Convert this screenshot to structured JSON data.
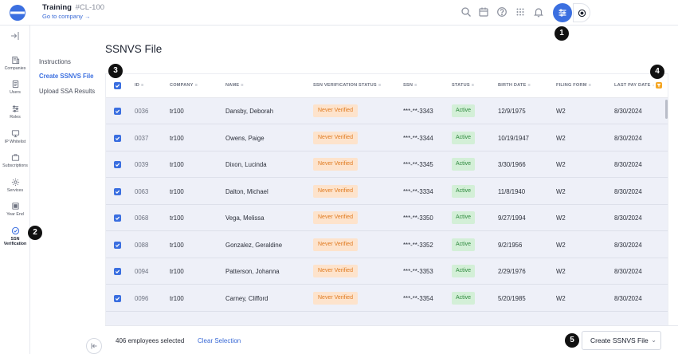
{
  "header": {
    "company_name": "Training",
    "company_code": "#CL-100",
    "goto_link": "Go to company →"
  },
  "icons": {
    "brand": "logo-icon",
    "accent": "#3b6fe0"
  },
  "rail": {
    "items": [
      {
        "label": "Companies"
      },
      {
        "label": "Users"
      },
      {
        "label": "Roles"
      },
      {
        "label": "IP Whitelist"
      },
      {
        "label": "Subscriptions"
      },
      {
        "label": "Services"
      },
      {
        "label": "Year End"
      },
      {
        "label": "SSN Verification",
        "line1": "SSN",
        "line2": "Verification"
      }
    ]
  },
  "subnav": {
    "items": [
      {
        "label": "Instructions"
      },
      {
        "label": "Create SSNVS File"
      },
      {
        "label": "Upload SSA Results"
      }
    ]
  },
  "page": {
    "title": "SSNVS File"
  },
  "table": {
    "columns": {
      "id": "ID",
      "company": "COMPANY",
      "name": "NAME",
      "ssn_status": "SSN VERIFICATION STATUS",
      "ssn": "SSN",
      "status": "STATUS",
      "birth": "BIRTH DATE",
      "filing": "FILING FORM",
      "last_pay": "LAST PAY DATE"
    },
    "rows": [
      {
        "id": "0036",
        "company": "tr100",
        "name": "Dansby, Deborah",
        "ssn_status": "Never Verified",
        "ssn": "***-**-3343",
        "status": "Active",
        "birth": "12/9/1975",
        "filing": "W2",
        "last_pay": "8/30/2024"
      },
      {
        "id": "0037",
        "company": "tr100",
        "name": "Owens, Paige",
        "ssn_status": "Never Verified",
        "ssn": "***-**-3344",
        "status": "Active",
        "birth": "10/19/1947",
        "filing": "W2",
        "last_pay": "8/30/2024"
      },
      {
        "id": "0039",
        "company": "tr100",
        "name": "Dixon, Lucinda",
        "ssn_status": "Never Verified",
        "ssn": "***-**-3345",
        "status": "Active",
        "birth": "3/30/1966",
        "filing": "W2",
        "last_pay": "8/30/2024"
      },
      {
        "id": "0063",
        "company": "tr100",
        "name": "Dalton, Michael",
        "ssn_status": "Never Verified",
        "ssn": "***-**-3334",
        "status": "Active",
        "birth": "11/8/1940",
        "filing": "W2",
        "last_pay": "8/30/2024"
      },
      {
        "id": "0068",
        "company": "tr100",
        "name": "Vega, Melissa",
        "ssn_status": "Never Verified",
        "ssn": "***-**-3350",
        "status": "Active",
        "birth": "9/27/1994",
        "filing": "W2",
        "last_pay": "8/30/2024"
      },
      {
        "id": "0088",
        "company": "tr100",
        "name": "Gonzalez, Geraldine",
        "ssn_status": "Never Verified",
        "ssn": "***-**-3352",
        "status": "Active",
        "birth": "9/2/1956",
        "filing": "W2",
        "last_pay": "8/30/2024"
      },
      {
        "id": "0094",
        "company": "tr100",
        "name": "Patterson, Johanna",
        "ssn_status": "Never Verified",
        "ssn": "***-**-3353",
        "status": "Active",
        "birth": "2/29/1976",
        "filing": "W2",
        "last_pay": "8/30/2024"
      },
      {
        "id": "0096",
        "company": "tr100",
        "name": "Carney, Clifford",
        "ssn_status": "Never Verified",
        "ssn": "***-**-3354",
        "status": "Active",
        "birth": "5/20/1985",
        "filing": "W2",
        "last_pay": "8/30/2024"
      }
    ]
  },
  "footer": {
    "selected_count": "406 employees selected",
    "clear_label": "Clear Selection",
    "create_label": "Create SSNVS File"
  },
  "markers": [
    "1",
    "2",
    "3",
    "4",
    "5"
  ]
}
